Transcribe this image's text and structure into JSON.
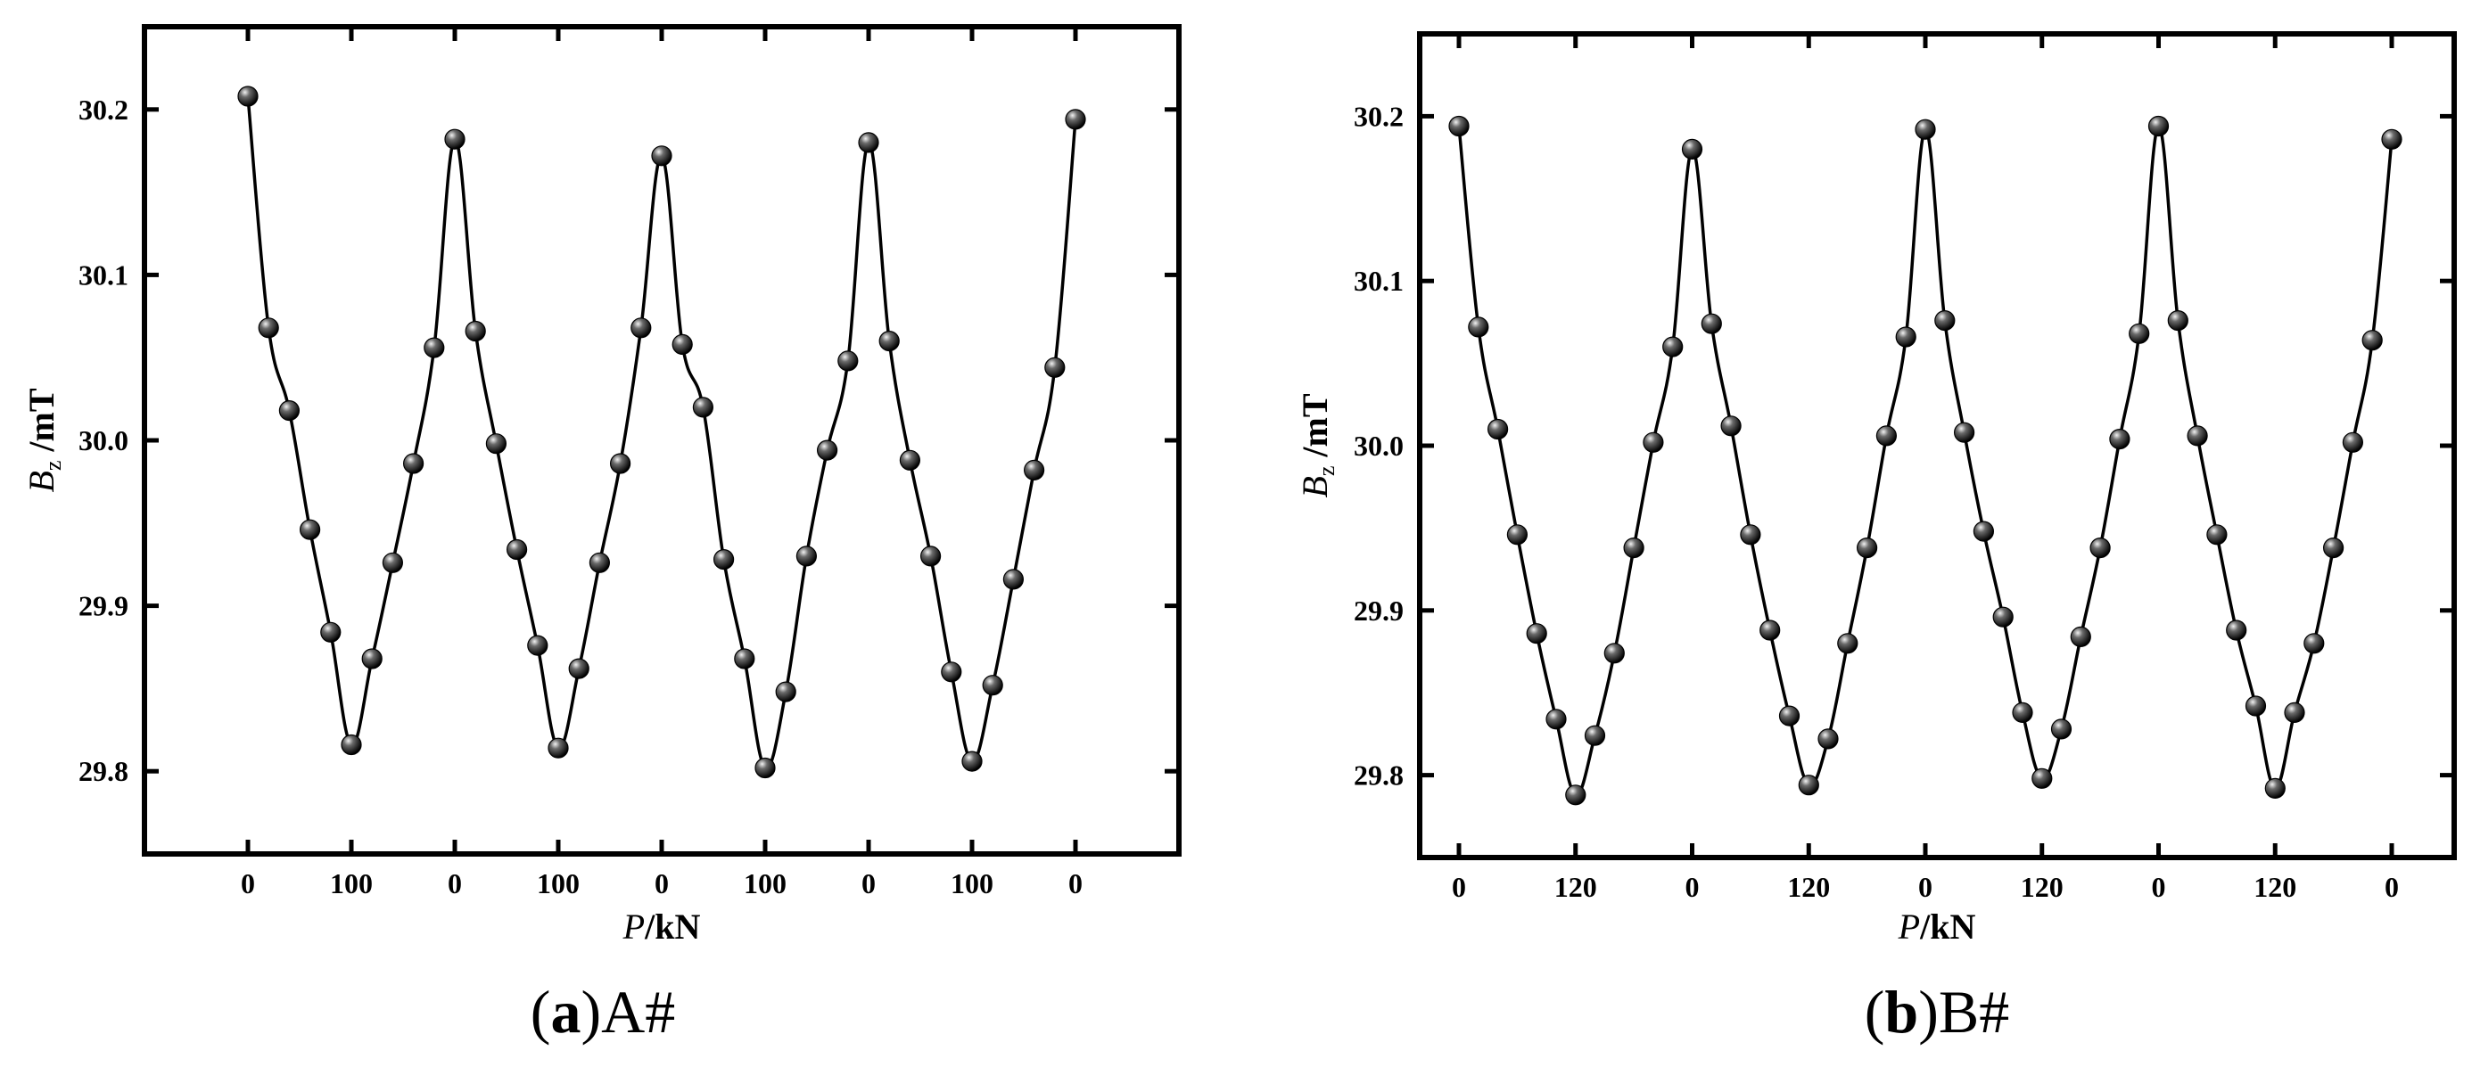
{
  "colors": {
    "line": "#000000",
    "marker": "#111111",
    "background": "#ffffff"
  },
  "chart_data": [
    {
      "type": "line",
      "caption": {
        "open": "(",
        "letter": "a",
        "close": ")",
        "text": "A#"
      },
      "xlabel": {
        "italic": "P",
        "rest": "/kN"
      },
      "ylabel": {
        "italic": "B",
        "sub": "z",
        "rest": " /mT"
      },
      "ylim": [
        29.75,
        30.25
      ],
      "yticks": [
        "29.8",
        "29.9",
        "30.0",
        "30.1",
        "30.2"
      ],
      "xticks": [
        "0",
        "100",
        "0",
        "100",
        "0",
        "100",
        "0",
        "100",
        "0"
      ],
      "grid": false,
      "legend": "none",
      "series": [
        {
          "values": [
            30.208,
            30.068,
            30.018,
            29.946,
            29.884,
            29.816,
            29.868,
            29.926,
            29.986,
            30.056,
            30.182,
            30.066,
            29.998,
            29.934,
            29.876,
            29.814,
            29.862,
            29.926,
            29.986,
            30.068,
            30.172,
            30.058,
            30.02,
            29.928,
            29.868,
            29.802,
            29.848,
            29.93,
            29.994,
            30.048,
            30.18,
            30.06,
            29.988,
            29.93,
            29.86,
            29.806,
            29.852,
            29.916,
            29.982,
            30.044,
            30.194
          ]
        }
      ]
    },
    {
      "type": "line",
      "caption": {
        "open": "(",
        "letter": "b",
        "close": ")",
        "text": "B#"
      },
      "xlabel": {
        "italic": "P",
        "rest": "/kN"
      },
      "ylabel": {
        "italic": "B",
        "sub": "z",
        "rest": " /mT"
      },
      "ylim": [
        29.75,
        30.25
      ],
      "yticks": [
        "29.8",
        "29.9",
        "30.0",
        "30.1",
        "30.2"
      ],
      "xticks": [
        "0",
        "120",
        "0",
        "120",
        "0",
        "120",
        "0",
        "120",
        "0"
      ],
      "grid": false,
      "legend": "none",
      "series": [
        {
          "values": [
            30.194,
            30.072,
            30.01,
            29.946,
            29.886,
            29.834,
            29.788,
            29.824,
            29.874,
            29.938,
            30.002,
            30.06,
            30.18,
            30.074,
            30.012,
            29.946,
            29.888,
            29.836,
            29.794,
            29.822,
            29.88,
            29.938,
            30.006,
            30.066,
            30.192,
            30.076,
            30.008,
            29.948,
            29.896,
            29.838,
            29.798,
            29.828,
            29.884,
            29.938,
            30.004,
            30.068,
            30.194,
            30.076,
            30.006,
            29.946,
            29.888,
            29.842,
            29.792,
            29.838,
            29.88,
            29.938,
            30.002,
            30.064,
            30.186
          ]
        }
      ]
    }
  ]
}
